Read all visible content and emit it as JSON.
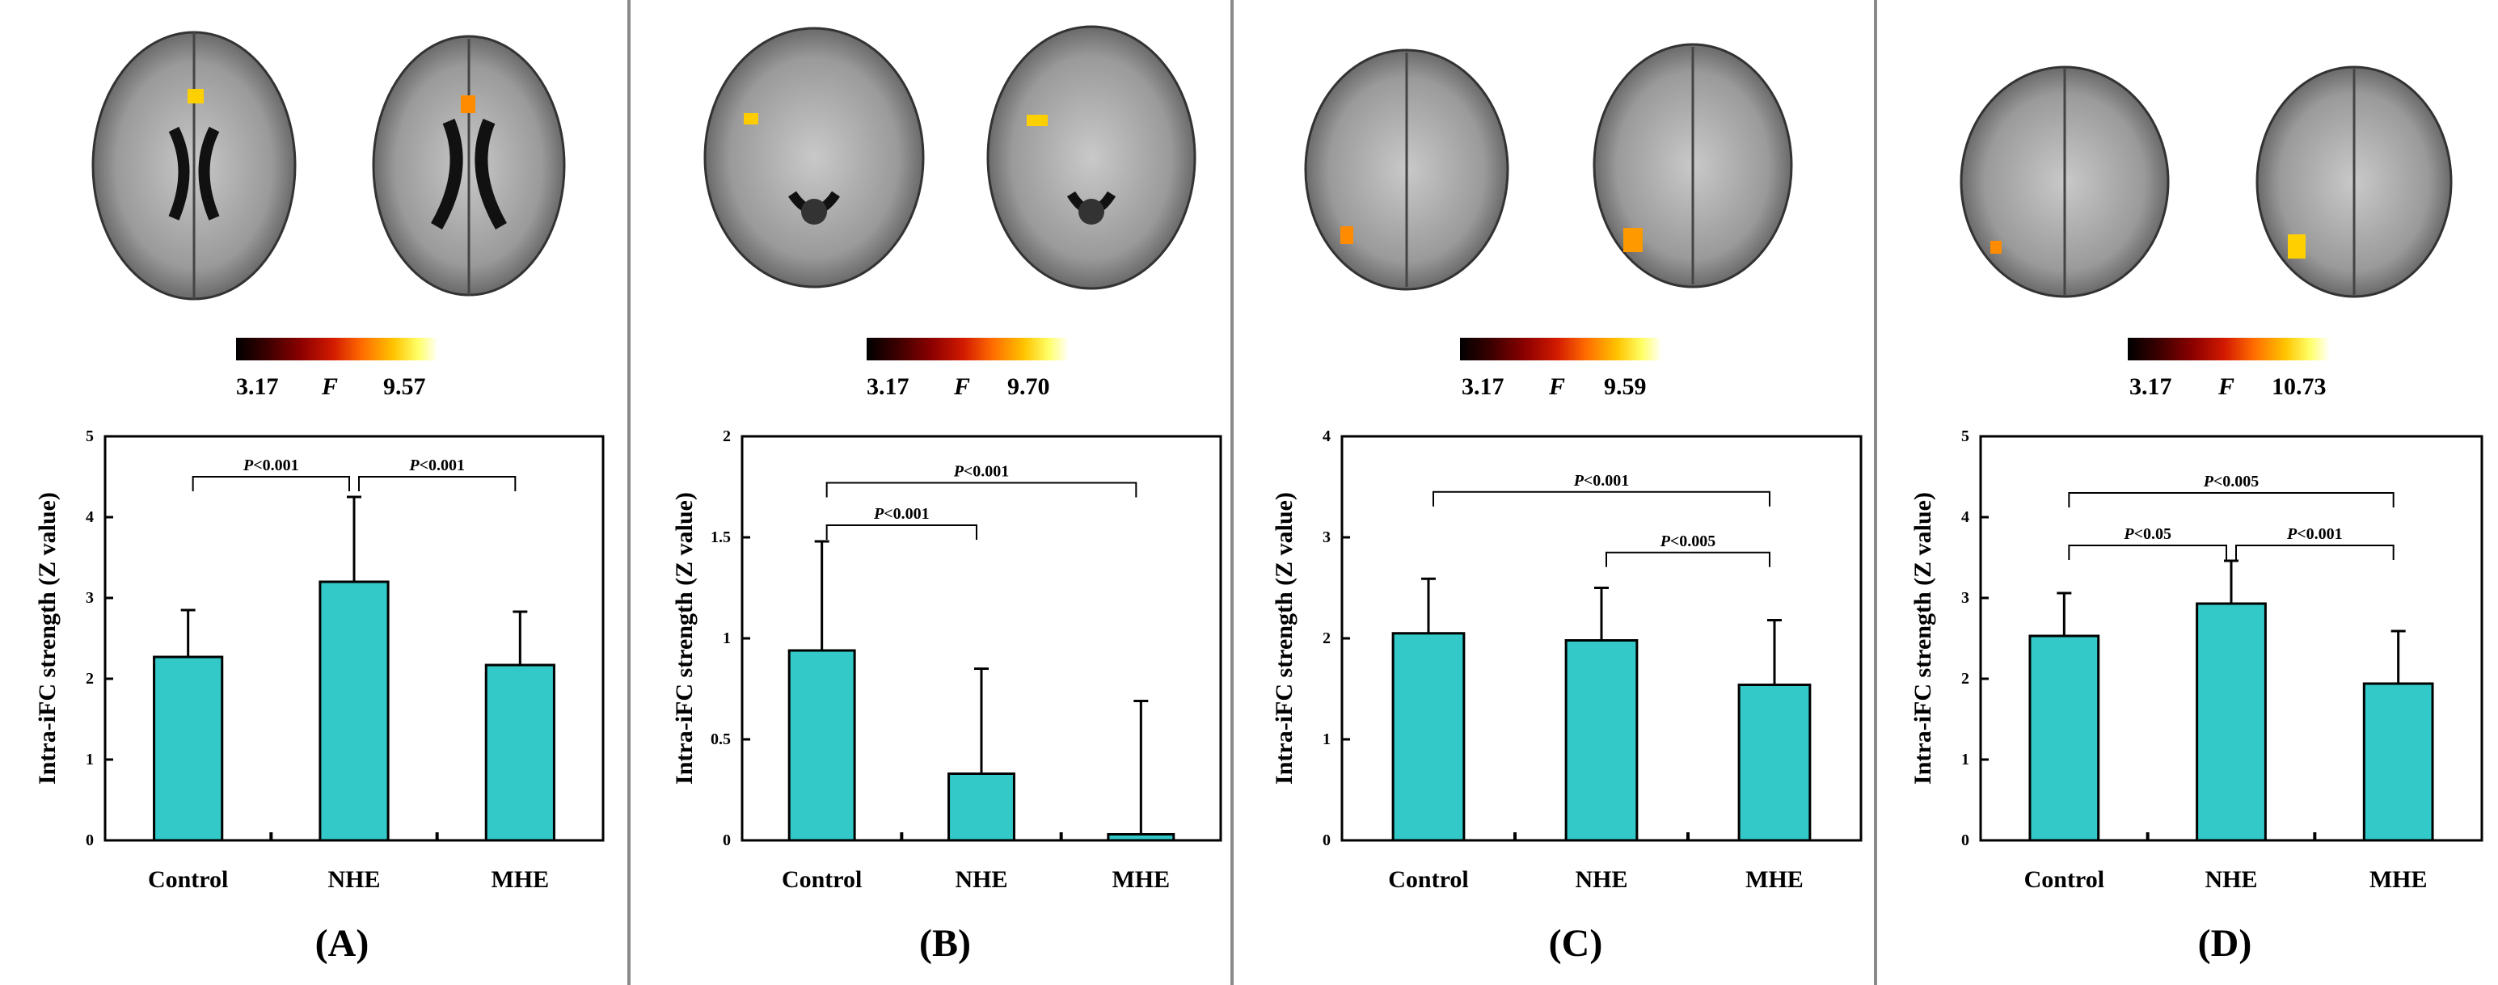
{
  "colors": {
    "bar": "#33c9c9",
    "bar_stroke": "#000000",
    "divider": "#8a8a8a"
  },
  "panels": [
    {
      "label": "(A)",
      "colorbar": {
        "min": "3.17",
        "stat": "F",
        "max": "9.57"
      },
      "chart_data": {
        "type": "bar",
        "title": "",
        "xlabel": "",
        "ylabel": "Intra-iFC strength (Z value)",
        "ylim": [
          0,
          5
        ],
        "yticks": [
          "0",
          "1",
          "2",
          "3",
          "4",
          "5"
        ],
        "categories": [
          "Control",
          "NHE",
          "MHE"
        ],
        "values": [
          2.27,
          3.2,
          2.17
        ],
        "errors": [
          0.58,
          1.05,
          0.66
        ],
        "significance": [
          {
            "from": 0,
            "to": 1,
            "label": "<0.001",
            "level": 4.5
          },
          {
            "from": 1,
            "to": 2,
            "label": "<0.001",
            "level": 4.5
          }
        ]
      }
    },
    {
      "label": "(B)",
      "colorbar": {
        "min": "3.17",
        "stat": "F",
        "max": "9.70"
      },
      "chart_data": {
        "type": "bar",
        "title": "",
        "xlabel": "",
        "ylabel": "Intra-iFC strength (Z value)",
        "ylim": [
          0,
          2
        ],
        "yticks": [
          "0",
          "0.5",
          "1",
          "1.5",
          "2"
        ],
        "categories": [
          "Control",
          "NHE",
          "MHE"
        ],
        "values": [
          0.94,
          0.33,
          0.03
        ],
        "errors": [
          0.54,
          0.52,
          0.66
        ],
        "significance": [
          {
            "from": 0,
            "to": 1,
            "label": "<0.001",
            "level": 1.56
          },
          {
            "from": 0,
            "to": 2,
            "label": "<0.001",
            "level": 1.77
          }
        ]
      }
    },
    {
      "label": "(C)",
      "colorbar": {
        "min": "3.17",
        "stat": "F",
        "max": "9.59"
      },
      "chart_data": {
        "type": "bar",
        "title": "",
        "xlabel": "",
        "ylabel": "Intra-iFC strength (Z value)",
        "ylim": [
          0,
          4
        ],
        "yticks": [
          "0",
          "1",
          "2",
          "3",
          "4"
        ],
        "categories": [
          "Control",
          "NHE",
          "MHE"
        ],
        "values": [
          2.05,
          1.98,
          1.54
        ],
        "errors": [
          0.54,
          0.52,
          0.64
        ],
        "significance": [
          {
            "from": 1,
            "to": 2,
            "label": "<0.005",
            "level": 2.85
          },
          {
            "from": 0,
            "to": 2,
            "label": "<0.001",
            "level": 3.45
          }
        ]
      }
    },
    {
      "label": "(D)",
      "colorbar": {
        "min": "3.17",
        "stat": "F",
        "max": "10.73"
      },
      "chart_data": {
        "type": "bar",
        "title": "",
        "xlabel": "",
        "ylabel": "Intra-iFC strength (Z value)",
        "ylim": [
          0,
          5
        ],
        "yticks": [
          "0",
          "1",
          "2",
          "3",
          "4",
          "5"
        ],
        "categories": [
          "Control",
          "NHE",
          "MHE"
        ],
        "values": [
          2.53,
          2.93,
          1.94
        ],
        "errors": [
          0.53,
          0.53,
          0.65
        ],
        "significance": [
          {
            "from": 0,
            "to": 1,
            "label": "<0.05",
            "level": 3.65
          },
          {
            "from": 1,
            "to": 2,
            "label": "<0.001",
            "level": 3.65
          },
          {
            "from": 0,
            "to": 2,
            "label": "<0.005",
            "level": 4.3
          }
        ]
      }
    }
  ]
}
